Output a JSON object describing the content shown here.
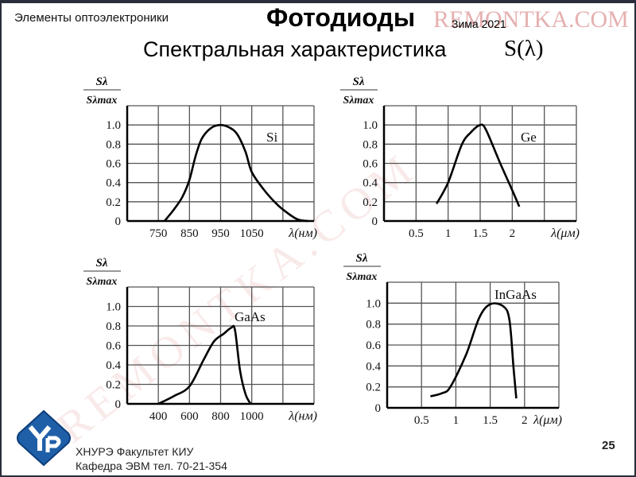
{
  "header": {
    "subject": "Элементы оптоэлектроники",
    "title": "Фотодиоды",
    "season": "Зима 2021",
    "subtitle": "Спектральная характеристика",
    "subtitle_symbol": "S(λ)"
  },
  "watermark": "REMONTKA.COM",
  "footer": {
    "line1": "ХНУРЭ Факультет КИУ",
    "line2": "Кафедра ЭВМ   тел. 70-21-354",
    "page_number": "25",
    "logo_text": "УР"
  },
  "colors": {
    "line": "#000000",
    "grid": "#555555",
    "logo": "#1f5fa8"
  },
  "chart_data": [
    {
      "type": "line",
      "title": "Si",
      "ylabel_num": "Sλ",
      "ylabel_den": "Sλmax",
      "xlabel": "λ(нм)",
      "xlim": [
        650,
        1250
      ],
      "ylim": [
        0,
        1.2
      ],
      "grid": true,
      "xgrid_step": 100,
      "ygrid_step": 0.2,
      "xticks": [
        750,
        850,
        950,
        1050
      ],
      "yticks": [
        "0",
        "0.2",
        "0.4",
        "0.6",
        "0.8",
        "1.0"
      ],
      "x": [
        770,
        800,
        827,
        850,
        870,
        890,
        920,
        950,
        980,
        1004,
        1030,
        1050,
        1088,
        1120,
        1150,
        1195,
        1232
      ],
      "y": [
        0,
        0.12,
        0.25,
        0.43,
        0.68,
        0.86,
        0.97,
        1.0,
        0.97,
        0.9,
        0.72,
        0.51,
        0.33,
        0.21,
        0.12,
        0.02,
        0
      ]
    },
    {
      "type": "line",
      "title": "Ge",
      "ylabel_num": "Sλ",
      "ylabel_den": "Sλmax",
      "xlabel": "λ(μм)",
      "xlim": [
        0,
        3
      ],
      "ylim": [
        0,
        1.2
      ],
      "grid": true,
      "xgrid_step": 0.5,
      "ygrid_step": 0.2,
      "xticks": [
        0.5,
        1,
        1.5,
        2
      ],
      "yticks": [
        "0",
        "0.2",
        "0.4",
        "0.6",
        "0.8",
        "1.0"
      ],
      "x": [
        0.82,
        1.0,
        1.21,
        1.35,
        1.5,
        1.59,
        1.8,
        2.0,
        2.11
      ],
      "y": [
        0.18,
        0.4,
        0.79,
        0.92,
        1.0,
        0.95,
        0.62,
        0.32,
        0.15
      ]
    },
    {
      "type": "line",
      "title": "GaAs",
      "ylabel_num": "Sλ",
      "ylabel_den": "Sλmax",
      "xlabel": "λ(нм)",
      "xlim": [
        200,
        1400
      ],
      "ylim": [
        0,
        1.2
      ],
      "grid": true,
      "xgrid_step": 200,
      "ygrid_step": 0.2,
      "xticks": [
        400,
        600,
        800,
        1000
      ],
      "yticks": [
        "0",
        "0.2",
        "0.4",
        "0.6",
        "0.8",
        "1.0"
      ],
      "x": [
        400,
        500,
        600,
        690,
        757,
        820,
        867,
        892,
        925,
        960,
        993
      ],
      "y": [
        0,
        0.08,
        0.18,
        0.45,
        0.64,
        0.72,
        0.78,
        0.76,
        0.34,
        0.1,
        0
      ]
    },
    {
      "type": "line",
      "title": "InGaAs",
      "ylabel_num": "Sλ",
      "ylabel_den": "Sλmax",
      "xlabel": "λ(μм)",
      "xlim": [
        0,
        2.5
      ],
      "ylim": [
        0,
        1.2
      ],
      "grid": true,
      "xgrid_step": 0.5,
      "ygrid_step": 0.2,
      "xticks": [
        0.5,
        1,
        1.5,
        2
      ],
      "yticks": [
        "0",
        "0.2",
        "0.4",
        "0.6",
        "0.8",
        "1.0"
      ],
      "x": [
        0.63,
        0.8,
        0.92,
        1.15,
        1.34,
        1.5,
        1.69,
        1.78,
        1.84,
        1.88
      ],
      "y": [
        0.11,
        0.14,
        0.2,
        0.51,
        0.86,
        0.99,
        0.97,
        0.84,
        0.38,
        0.09
      ]
    }
  ]
}
